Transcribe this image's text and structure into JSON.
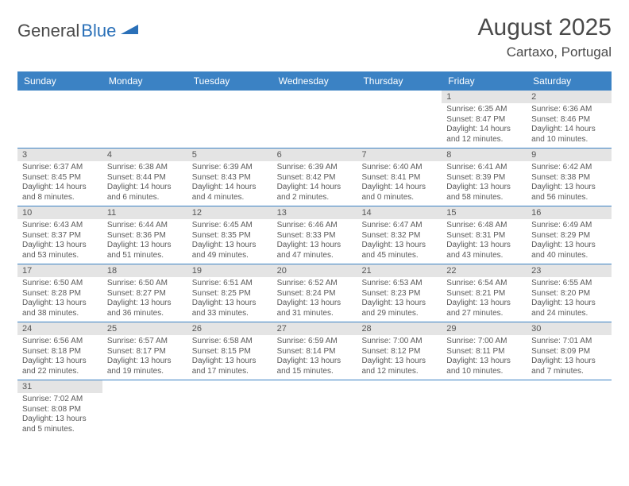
{
  "logo": {
    "part1": "General",
    "part2": "Blue",
    "accent_color": "#2a70b8"
  },
  "title": "August 2025",
  "location": "Cartaxo, Portugal",
  "colors": {
    "header_bg": "#3b82c4",
    "header_text": "#ffffff",
    "daynum_bg": "#e4e4e4",
    "border": "#3b82c4",
    "text": "#4a4a4a"
  },
  "day_names": [
    "Sunday",
    "Monday",
    "Tuesday",
    "Wednesday",
    "Thursday",
    "Friday",
    "Saturday"
  ],
  "weeks": [
    [
      null,
      null,
      null,
      null,
      null,
      {
        "n": "1",
        "sr": "Sunrise: 6:35 AM",
        "ss": "Sunset: 8:47 PM",
        "dl1": "Daylight: 14 hours",
        "dl2": "and 12 minutes."
      },
      {
        "n": "2",
        "sr": "Sunrise: 6:36 AM",
        "ss": "Sunset: 8:46 PM",
        "dl1": "Daylight: 14 hours",
        "dl2": "and 10 minutes."
      }
    ],
    [
      {
        "n": "3",
        "sr": "Sunrise: 6:37 AM",
        "ss": "Sunset: 8:45 PM",
        "dl1": "Daylight: 14 hours",
        "dl2": "and 8 minutes."
      },
      {
        "n": "4",
        "sr": "Sunrise: 6:38 AM",
        "ss": "Sunset: 8:44 PM",
        "dl1": "Daylight: 14 hours",
        "dl2": "and 6 minutes."
      },
      {
        "n": "5",
        "sr": "Sunrise: 6:39 AM",
        "ss": "Sunset: 8:43 PM",
        "dl1": "Daylight: 14 hours",
        "dl2": "and 4 minutes."
      },
      {
        "n": "6",
        "sr": "Sunrise: 6:39 AM",
        "ss": "Sunset: 8:42 PM",
        "dl1": "Daylight: 14 hours",
        "dl2": "and 2 minutes."
      },
      {
        "n": "7",
        "sr": "Sunrise: 6:40 AM",
        "ss": "Sunset: 8:41 PM",
        "dl1": "Daylight: 14 hours",
        "dl2": "and 0 minutes."
      },
      {
        "n": "8",
        "sr": "Sunrise: 6:41 AM",
        "ss": "Sunset: 8:39 PM",
        "dl1": "Daylight: 13 hours",
        "dl2": "and 58 minutes."
      },
      {
        "n": "9",
        "sr": "Sunrise: 6:42 AM",
        "ss": "Sunset: 8:38 PM",
        "dl1": "Daylight: 13 hours",
        "dl2": "and 56 minutes."
      }
    ],
    [
      {
        "n": "10",
        "sr": "Sunrise: 6:43 AM",
        "ss": "Sunset: 8:37 PM",
        "dl1": "Daylight: 13 hours",
        "dl2": "and 53 minutes."
      },
      {
        "n": "11",
        "sr": "Sunrise: 6:44 AM",
        "ss": "Sunset: 8:36 PM",
        "dl1": "Daylight: 13 hours",
        "dl2": "and 51 minutes."
      },
      {
        "n": "12",
        "sr": "Sunrise: 6:45 AM",
        "ss": "Sunset: 8:35 PM",
        "dl1": "Daylight: 13 hours",
        "dl2": "and 49 minutes."
      },
      {
        "n": "13",
        "sr": "Sunrise: 6:46 AM",
        "ss": "Sunset: 8:33 PM",
        "dl1": "Daylight: 13 hours",
        "dl2": "and 47 minutes."
      },
      {
        "n": "14",
        "sr": "Sunrise: 6:47 AM",
        "ss": "Sunset: 8:32 PM",
        "dl1": "Daylight: 13 hours",
        "dl2": "and 45 minutes."
      },
      {
        "n": "15",
        "sr": "Sunrise: 6:48 AM",
        "ss": "Sunset: 8:31 PM",
        "dl1": "Daylight: 13 hours",
        "dl2": "and 43 minutes."
      },
      {
        "n": "16",
        "sr": "Sunrise: 6:49 AM",
        "ss": "Sunset: 8:29 PM",
        "dl1": "Daylight: 13 hours",
        "dl2": "and 40 minutes."
      }
    ],
    [
      {
        "n": "17",
        "sr": "Sunrise: 6:50 AM",
        "ss": "Sunset: 8:28 PM",
        "dl1": "Daylight: 13 hours",
        "dl2": "and 38 minutes."
      },
      {
        "n": "18",
        "sr": "Sunrise: 6:50 AM",
        "ss": "Sunset: 8:27 PM",
        "dl1": "Daylight: 13 hours",
        "dl2": "and 36 minutes."
      },
      {
        "n": "19",
        "sr": "Sunrise: 6:51 AM",
        "ss": "Sunset: 8:25 PM",
        "dl1": "Daylight: 13 hours",
        "dl2": "and 33 minutes."
      },
      {
        "n": "20",
        "sr": "Sunrise: 6:52 AM",
        "ss": "Sunset: 8:24 PM",
        "dl1": "Daylight: 13 hours",
        "dl2": "and 31 minutes."
      },
      {
        "n": "21",
        "sr": "Sunrise: 6:53 AM",
        "ss": "Sunset: 8:23 PM",
        "dl1": "Daylight: 13 hours",
        "dl2": "and 29 minutes."
      },
      {
        "n": "22",
        "sr": "Sunrise: 6:54 AM",
        "ss": "Sunset: 8:21 PM",
        "dl1": "Daylight: 13 hours",
        "dl2": "and 27 minutes."
      },
      {
        "n": "23",
        "sr": "Sunrise: 6:55 AM",
        "ss": "Sunset: 8:20 PM",
        "dl1": "Daylight: 13 hours",
        "dl2": "and 24 minutes."
      }
    ],
    [
      {
        "n": "24",
        "sr": "Sunrise: 6:56 AM",
        "ss": "Sunset: 8:18 PM",
        "dl1": "Daylight: 13 hours",
        "dl2": "and 22 minutes."
      },
      {
        "n": "25",
        "sr": "Sunrise: 6:57 AM",
        "ss": "Sunset: 8:17 PM",
        "dl1": "Daylight: 13 hours",
        "dl2": "and 19 minutes."
      },
      {
        "n": "26",
        "sr": "Sunrise: 6:58 AM",
        "ss": "Sunset: 8:15 PM",
        "dl1": "Daylight: 13 hours",
        "dl2": "and 17 minutes."
      },
      {
        "n": "27",
        "sr": "Sunrise: 6:59 AM",
        "ss": "Sunset: 8:14 PM",
        "dl1": "Daylight: 13 hours",
        "dl2": "and 15 minutes."
      },
      {
        "n": "28",
        "sr": "Sunrise: 7:00 AM",
        "ss": "Sunset: 8:12 PM",
        "dl1": "Daylight: 13 hours",
        "dl2": "and 12 minutes."
      },
      {
        "n": "29",
        "sr": "Sunrise: 7:00 AM",
        "ss": "Sunset: 8:11 PM",
        "dl1": "Daylight: 13 hours",
        "dl2": "and 10 minutes."
      },
      {
        "n": "30",
        "sr": "Sunrise: 7:01 AM",
        "ss": "Sunset: 8:09 PM",
        "dl1": "Daylight: 13 hours",
        "dl2": "and 7 minutes."
      }
    ],
    [
      {
        "n": "31",
        "sr": "Sunrise: 7:02 AM",
        "ss": "Sunset: 8:08 PM",
        "dl1": "Daylight: 13 hours",
        "dl2": "and 5 minutes."
      },
      null,
      null,
      null,
      null,
      null,
      null
    ]
  ]
}
